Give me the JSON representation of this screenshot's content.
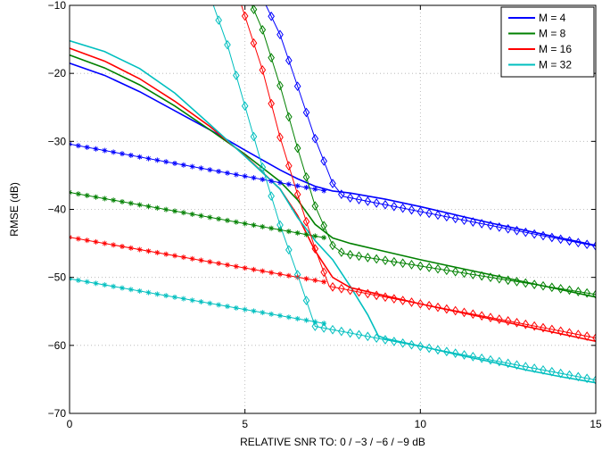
{
  "chart_data": {
    "type": "line",
    "title": "",
    "xlabel": "RELATIVE SNR TO: 0 / −3 / −6 / −9 dB",
    "ylabel": "RMSE (dB)",
    "xlim": [
      0,
      15
    ],
    "ylim": [
      -70,
      -10
    ],
    "xticks": [
      0,
      5,
      10,
      15
    ],
    "xtick_labels": [
      "0",
      "5",
      "10",
      "15"
    ],
    "yticks": [
      -70,
      -60,
      -50,
      -40,
      -30,
      -20,
      -10
    ],
    "ytick_labels": [
      "−70",
      "−60",
      "−50",
      "−40",
      "−30",
      "−20",
      "−10"
    ],
    "grid": true,
    "legend_position": "top-right",
    "legend": [
      {
        "label": "M = 4",
        "color": "#0000ff"
      },
      {
        "label": "M = 8",
        "color": "#008000"
      },
      {
        "label": "M = 16",
        "color": "#ff0000"
      },
      {
        "label": "M = 32",
        "color": "#00bfbf"
      }
    ],
    "series": [
      {
        "name": "M = 4",
        "color": "#0000ff",
        "style": "solid",
        "x": [
          0,
          1,
          2,
          3,
          4,
          5,
          6,
          6.5,
          7,
          7.5,
          8,
          9,
          10,
          11,
          12,
          13,
          14,
          15
        ],
        "y": [
          -18.5,
          -20.3,
          -22.7,
          -25.5,
          -28.3,
          -31.3,
          -34.2,
          -35.5,
          -36.6,
          -37.3,
          -37.6,
          -38.5,
          -39.6,
          -40.8,
          -42,
          -43.1,
          -44.2,
          -45.3
        ]
      },
      {
        "name": "M = 8",
        "color": "#008000",
        "style": "solid",
        "x": [
          0,
          1,
          2,
          3,
          4,
          5,
          6,
          6.5,
          7,
          7.5,
          8,
          9,
          10,
          11,
          12,
          13,
          14,
          15
        ],
        "y": [
          -17.3,
          -19.2,
          -21.7,
          -24.8,
          -28.3,
          -31.9,
          -35.9,
          -38.6,
          -42.2,
          -44.2,
          -45,
          -46.2,
          -47.4,
          -48.5,
          -49.6,
          -50.7,
          -51.8,
          -52.9
        ]
      },
      {
        "name": "M = 16",
        "color": "#ff0000",
        "style": "solid",
        "x": [
          0,
          1,
          2,
          3,
          4,
          5,
          6,
          6.5,
          7,
          7.5,
          8,
          9,
          10,
          11,
          12,
          13,
          14,
          15
        ],
        "y": [
          -16.3,
          -18.2,
          -20.8,
          -24.1,
          -27.8,
          -32.1,
          -37,
          -40.9,
          -46.1,
          -50,
          -51.5,
          -52.7,
          -53.9,
          -55,
          -56.1,
          -57.2,
          -58.3,
          -59.4
        ]
      },
      {
        "name": "M = 32",
        "color": "#00bfbf",
        "style": "solid",
        "x": [
          0,
          1,
          2,
          3,
          4,
          5,
          6,
          6.5,
          7,
          7.5,
          8,
          8.5,
          8.8,
          9,
          10,
          11,
          12,
          13,
          14,
          15
        ],
        "y": [
          -15.2,
          -16.8,
          -19.3,
          -22.9,
          -27.5,
          -32.2,
          -37,
          -41.2,
          -44.6,
          -47.4,
          -51.3,
          -55.5,
          -58.6,
          -59,
          -60.1,
          -61.3,
          -62.4,
          -63.6,
          -64.6,
          -65.5
        ]
      },
      {
        "name": "M = 4 (asterisk)",
        "color": "#0000ff",
        "style": "star",
        "x": [
          0,
          7.3
        ],
        "y": [
          -30.4,
          -37.3
        ]
      },
      {
        "name": "M = 4 (diamond)",
        "color": "#0000ff",
        "style": "diamond",
        "x": [
          5.6,
          6,
          6.5,
          7,
          7.5,
          7.8,
          15
        ],
        "y": [
          -10,
          -14.3,
          -21.9,
          -29.6,
          -36.2,
          -38.1,
          -45.4
        ]
      },
      {
        "name": "M = 8 (asterisk)",
        "color": "#008000",
        "style": "star",
        "x": [
          0,
          7.3
        ],
        "y": [
          -37.5,
          -44.2
        ]
      },
      {
        "name": "M = 8 (diamond)",
        "color": "#008000",
        "style": "diamond",
        "x": [
          5.2,
          5.5,
          6,
          6.5,
          7,
          7.5,
          7.8,
          15
        ],
        "y": [
          -10,
          -13.6,
          -21.8,
          -31,
          -39.5,
          -45.3,
          -46.5,
          -52.5
        ]
      },
      {
        "name": "M = 16 (asterisk)",
        "color": "#ff0000",
        "style": "star",
        "x": [
          0,
          7.3
        ],
        "y": [
          -44.1,
          -50.7
        ]
      },
      {
        "name": "M = 16 (diamond)",
        "color": "#ff0000",
        "style": "diamond",
        "x": [
          4.9,
          5.5,
          6,
          6.5,
          7,
          7.4,
          15
        ],
        "y": [
          -10,
          -19.5,
          -29.4,
          -37.8,
          -45.8,
          -51.3,
          -58.9
        ]
      },
      {
        "name": "M = 32 (asterisk)",
        "color": "#00bfbf",
        "style": "star",
        "x": [
          0,
          7.3
        ],
        "y": [
          -50.2,
          -56.8
        ]
      },
      {
        "name": "M = 32 (diamond)",
        "color": "#00bfbf",
        "style": "diamond",
        "x": [
          4.1,
          4.5,
          5,
          5.5,
          6,
          6.5,
          7,
          15
        ],
        "y": [
          -10,
          -15.8,
          -24.8,
          -33.8,
          -42.3,
          -49.6,
          -57.2,
          -65.1
        ]
      }
    ]
  }
}
